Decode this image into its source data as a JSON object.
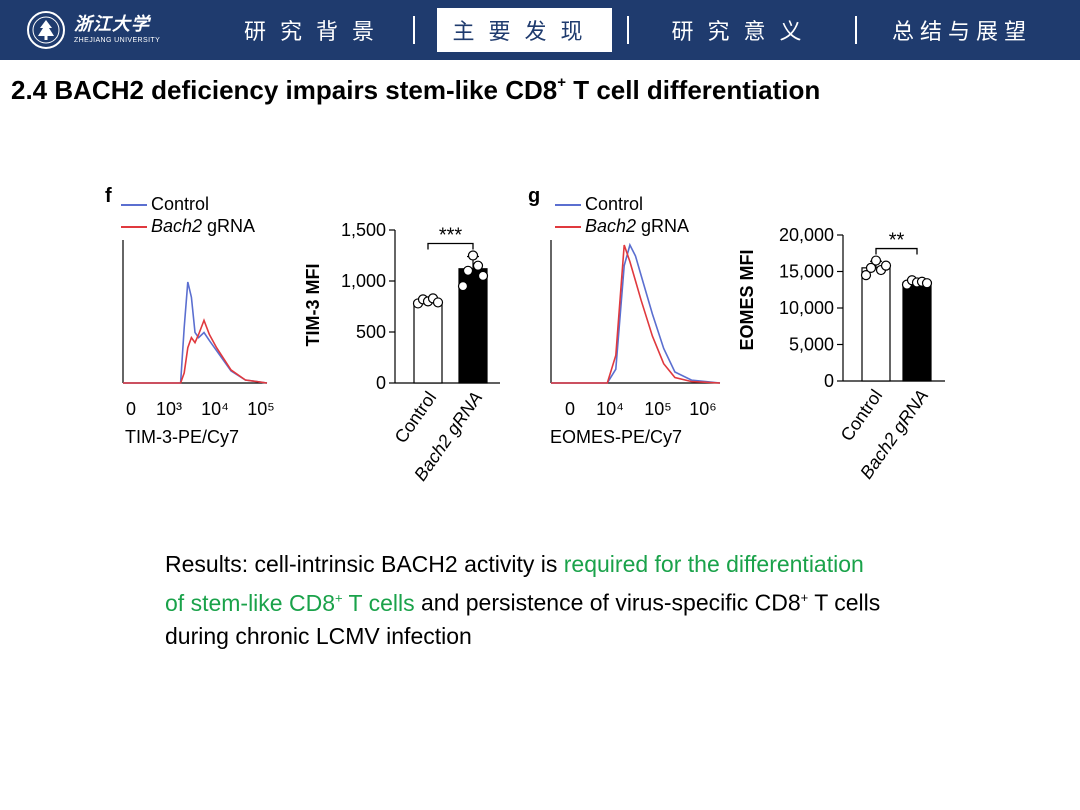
{
  "header": {
    "logo_cn": "浙江大学",
    "logo_en": "ZHEJIANG UNIVERSITY",
    "nav": [
      "研究背景",
      "主要发现",
      "研究意义",
      "总结与展望"
    ],
    "active_index": 1
  },
  "slide": {
    "title_pre": "2.4 BACH2 deficiency impairs stem-like CD8",
    "title_sup": "+",
    "title_post": " T cell differentiation"
  },
  "results": {
    "p1": "Results: cell-intrinsic BACH2 activity is ",
    "hl1": "required for the differentiation of stem-like CD8",
    "sup": "+",
    "hl2": " T cells",
    "p2": " and persistence of virus-specific CD8",
    "p3": " T cells during chronic LCMV infection"
  },
  "colors": {
    "control": "#5b6fd0",
    "bach2": "#e0393e",
    "nav_bg": "#1f3b6e",
    "highlight": "#1aa24a"
  },
  "chart_data": [
    {
      "type": "line",
      "panel": "f",
      "title": "",
      "xlabel": "TIM-3-PE/Cy7",
      "xticks": [
        "0",
        "10³",
        "10⁴",
        "10⁵"
      ],
      "series": [
        {
          "name": "Control",
          "x": [
            0.0,
            1.6,
            1.7,
            1.8,
            1.9,
            2.0,
            2.1,
            2.25,
            2.4,
            2.6,
            2.8,
            3.0,
            3.4,
            4.0
          ],
          "values": [
            0,
            0,
            0.55,
            1.0,
            0.85,
            0.5,
            0.45,
            0.5,
            0.42,
            0.32,
            0.22,
            0.12,
            0.03,
            0
          ]
        },
        {
          "name": "Bach2 gRNA",
          "x": [
            0.0,
            1.6,
            1.7,
            1.8,
            1.9,
            2.0,
            2.1,
            2.25,
            2.4,
            2.6,
            2.8,
            3.0,
            3.4,
            4.0
          ],
          "values": [
            0,
            0,
            0.1,
            0.35,
            0.45,
            0.4,
            0.48,
            0.62,
            0.48,
            0.35,
            0.24,
            0.13,
            0.03,
            0
          ]
        }
      ]
    },
    {
      "type": "bar",
      "panel": "f",
      "ylabel": "TIM-3 MFI",
      "categories": [
        "Control",
        "Bach2 gRNA"
      ],
      "values": [
        800,
        1120
      ],
      "errors": [
        40,
        120
      ],
      "points": [
        [
          780,
          820,
          800,
          830,
          790
        ],
        [
          950,
          1100,
          1250,
          1150,
          1050
        ]
      ],
      "ylim": [
        0,
        1500
      ],
      "yticks": [
        "0",
        "500",
        "1,000",
        "1,500"
      ],
      "significance": "***"
    },
    {
      "type": "line",
      "panel": "g",
      "title": "",
      "xlabel": "EOMES-PE/Cy7",
      "xticks": [
        "0",
        "10⁴",
        "10⁵",
        "10⁶"
      ],
      "series": [
        {
          "name": "Control",
          "x": [
            0.0,
            1.0,
            1.15,
            1.3,
            1.4,
            1.5,
            1.6,
            1.8,
            2.0,
            2.2,
            2.5,
            3.0
          ],
          "values": [
            0,
            0,
            0.1,
            0.85,
            1.0,
            0.92,
            0.78,
            0.5,
            0.25,
            0.08,
            0.02,
            0
          ]
        },
        {
          "name": "Bach2 gRNA",
          "x": [
            0.0,
            1.0,
            1.15,
            1.3,
            1.4,
            1.5,
            1.6,
            1.8,
            2.0,
            2.2,
            2.5,
            3.0
          ],
          "values": [
            0,
            0,
            0.2,
            1.0,
            0.88,
            0.74,
            0.6,
            0.34,
            0.14,
            0.04,
            0.01,
            0
          ]
        }
      ]
    },
    {
      "type": "bar",
      "panel": "g",
      "ylabel": "EOMES MFI",
      "categories": [
        "Control",
        "Bach2 gRNA"
      ],
      "values": [
        15500,
        13500
      ],
      "errors": [
        900,
        400
      ],
      "points": [
        [
          14500,
          15500,
          16500,
          15200,
          15800
        ],
        [
          13200,
          13800,
          13500,
          13600,
          13400
        ]
      ],
      "ylim": [
        0,
        20000
      ],
      "yticks": [
        "0",
        "5,000",
        "10,000",
        "15,000",
        "20,000"
      ],
      "significance": "**"
    }
  ],
  "figure_labels": {
    "panel_f": "f",
    "panel_g": "g",
    "legend_control": "Control",
    "legend_bach2_italic": "Bach2",
    "legend_bach2_rest": " gRNA"
  }
}
